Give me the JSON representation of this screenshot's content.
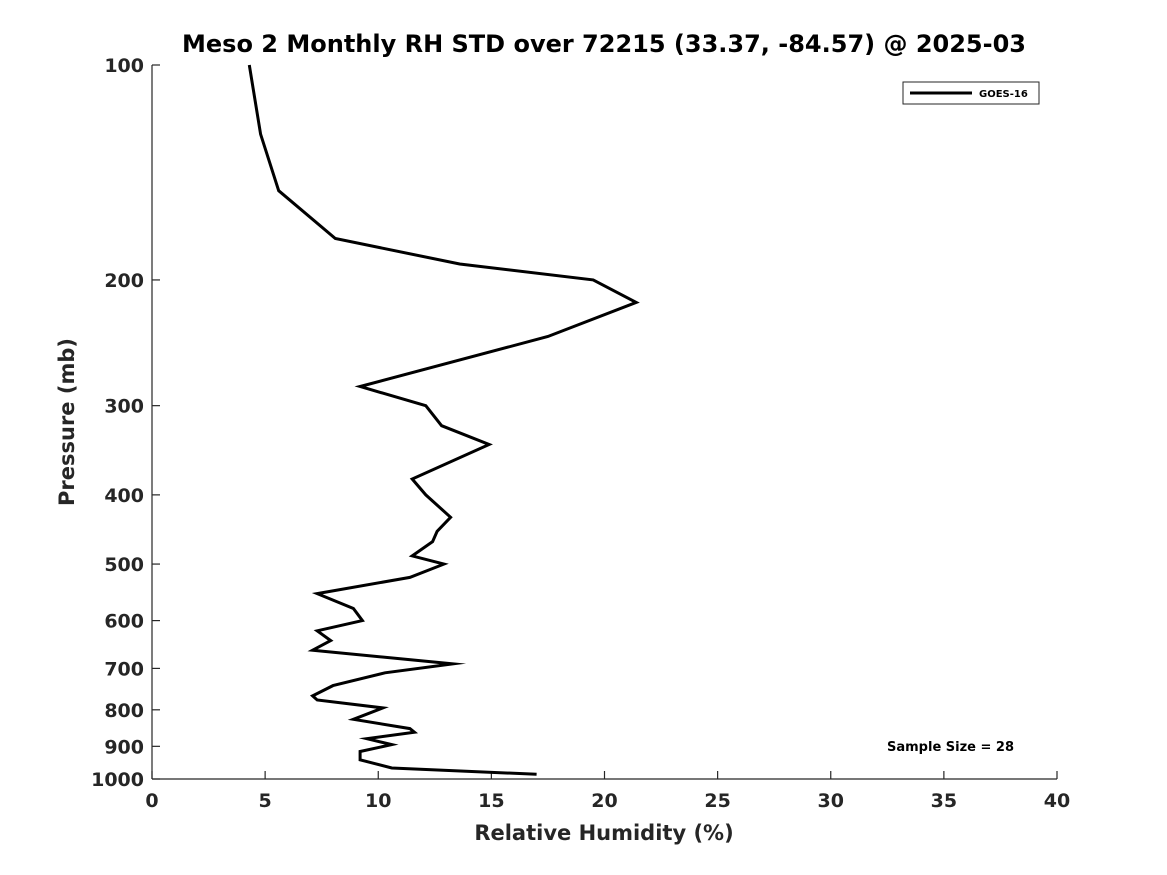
{
  "chart_data": {
    "type": "line",
    "title": "Meso 2 Monthly RH STD over 72215 (33.37, -84.57) @ 2025-03",
    "xlabel": "Relative Humidity (%)",
    "ylabel": "Pressure (mb)",
    "xlim": [
      0,
      40
    ],
    "ylim": [
      100,
      1000
    ],
    "yscale": "log",
    "y_reversed": true,
    "grid": false,
    "legend_position": "top-right",
    "xticks": [
      0,
      5,
      10,
      15,
      20,
      25,
      30,
      35,
      40
    ],
    "xtick_labels": [
      "0",
      "5",
      "10",
      "15",
      "20",
      "25",
      "30",
      "35",
      "40"
    ],
    "yticks": [
      100,
      200,
      300,
      400,
      500,
      600,
      700,
      800,
      900,
      1000
    ],
    "ytick_labels": [
      "100",
      "200",
      "300",
      "400",
      "500",
      "600",
      "700",
      "800",
      "900",
      "1000"
    ],
    "series": [
      {
        "name": "GOES-16",
        "color": "#000000",
        "x": [
          4.3,
          4.8,
          5.6,
          8.1,
          13.6,
          19.5,
          21.4,
          17.5,
          9.2,
          12.1,
          12.8,
          14.9,
          11.5,
          12.1,
          13.2,
          12.6,
          12.4,
          11.5,
          12.9,
          11.4,
          7.3,
          8.9,
          9.3,
          7.3,
          7.9,
          7.1,
          13.3,
          10.3,
          8.0,
          7.1,
          7.3,
          10.2,
          8.9,
          11.4,
          11.6,
          9.5,
          10.6,
          9.2,
          9.2,
          10.6,
          17.0
        ],
        "y": [
          100,
          125,
          150,
          175,
          190,
          200,
          215,
          240,
          282,
          300,
          320,
          340,
          380,
          400,
          430,
          450,
          465,
          487,
          500,
          522,
          550,
          577,
          600,
          620,
          640,
          660,
          690,
          710,
          740,
          765,
          775,
          795,
          825,
          850,
          860,
          878,
          895,
          915,
          940,
          965,
          985
        ]
      }
    ],
    "annotations": [
      "Sample Size = 28"
    ]
  }
}
